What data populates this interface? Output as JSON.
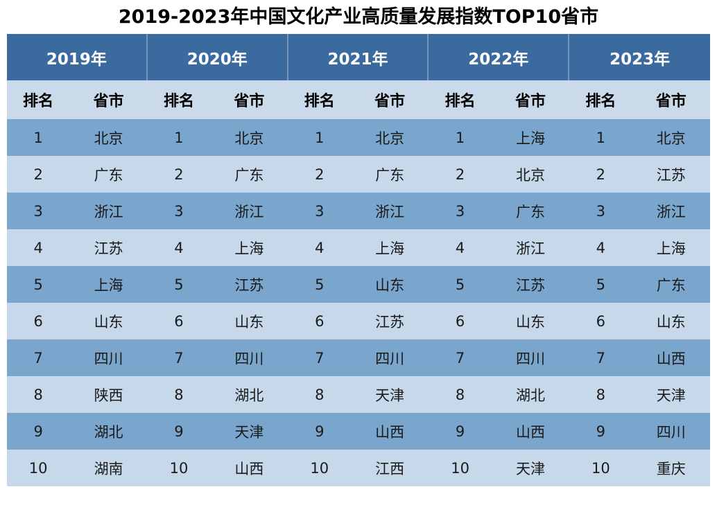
{
  "title": "2019-2023年中国文化产业高质量发展指数TOP10省市",
  "colors": {
    "header_bg": "#3B6B9E",
    "header_divider": "rgba(255,255,255,0.30)",
    "subheader_bg": "#CBDAEB",
    "row_odd_bg": "#7AA5CD",
    "row_even_bg": "#C6D8EA",
    "title_text": "#000000",
    "header_text": "#FFFFFF",
    "cell_text": "#1A1A1A"
  },
  "chart_data": {
    "type": "table",
    "title": "2019-2023年中国文化产业高质量发展指数TOP10省市",
    "year_headers": [
      "2019年",
      "2020年",
      "2021年",
      "2022年",
      "2023年"
    ],
    "sub_headers": {
      "rank": "排名",
      "province": "省市"
    },
    "rows": [
      {
        "rank": "1",
        "provinces": [
          "北京",
          "北京",
          "北京",
          "上海",
          "北京"
        ]
      },
      {
        "rank": "2",
        "provinces": [
          "广东",
          "广东",
          "广东",
          "北京",
          "江苏"
        ]
      },
      {
        "rank": "3",
        "provinces": [
          "浙江",
          "浙江",
          "浙江",
          "广东",
          "浙江"
        ]
      },
      {
        "rank": "4",
        "provinces": [
          "江苏",
          "上海",
          "上海",
          "浙江",
          "上海"
        ]
      },
      {
        "rank": "5",
        "provinces": [
          "上海",
          "江苏",
          "山东",
          "江苏",
          "广东"
        ]
      },
      {
        "rank": "6",
        "provinces": [
          "山东",
          "山东",
          "江苏",
          "山东",
          "山东"
        ]
      },
      {
        "rank": "7",
        "provinces": [
          "四川",
          "四川",
          "四川",
          "四川",
          "山西"
        ]
      },
      {
        "rank": "8",
        "provinces": [
          "陕西",
          "湖北",
          "天津",
          "湖北",
          "天津"
        ]
      },
      {
        "rank": "9",
        "provinces": [
          "湖北",
          "天津",
          "山西",
          "山西",
          "四川"
        ]
      },
      {
        "rank": "10",
        "provinces": [
          "湖南",
          "山西",
          "江西",
          "天津",
          "重庆"
        ]
      }
    ]
  }
}
